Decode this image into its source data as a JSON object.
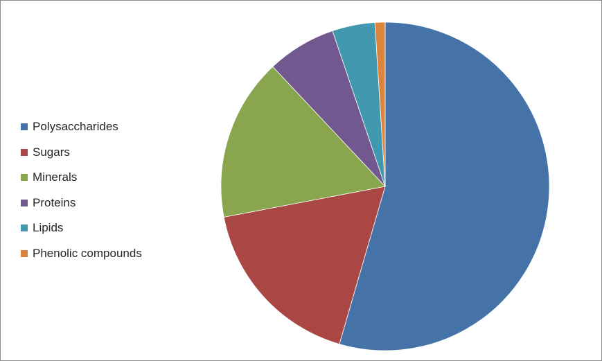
{
  "chart_data": {
    "type": "pie",
    "title": "",
    "start_angle_deg": 0,
    "direction": "clockwise",
    "legend_position": "left",
    "slices": [
      {
        "label": "Polysaccharides",
        "value": 54.5,
        "color": "#4572A7"
      },
      {
        "label": "Sugars",
        "value": 17.5,
        "color": "#AA4643"
      },
      {
        "label": "Minerals",
        "value": 16.0,
        "color": "#89A54E"
      },
      {
        "label": "Proteins",
        "value": 6.8,
        "color": "#71588F"
      },
      {
        "label": "Lipids",
        "value": 4.2,
        "color": "#4198AF"
      },
      {
        "label": "Phenolic compounds",
        "value": 1.0,
        "color": "#DB843D"
      }
    ]
  }
}
